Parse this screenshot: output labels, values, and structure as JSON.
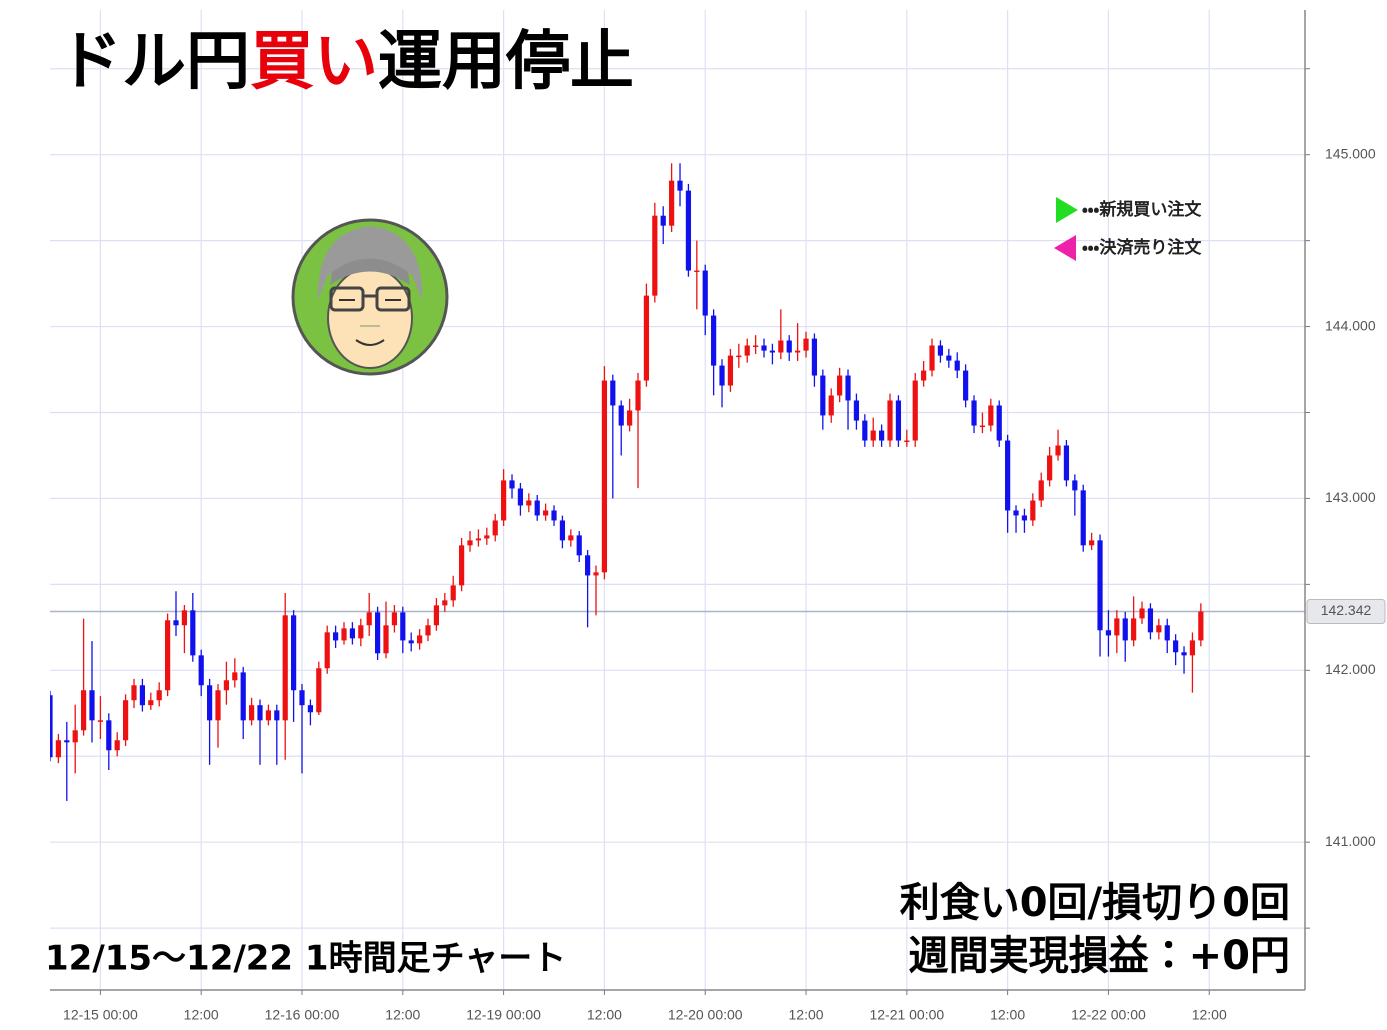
{
  "header": {
    "title_parts": [
      {
        "text": "ドル円",
        "color": "#000000"
      },
      {
        "text": "買い",
        "color": "#e8000b"
      },
      {
        "text": "運用停止",
        "color": "#000000"
      }
    ]
  },
  "chart_data": {
    "type": "candlestick",
    "xlim": [
      0,
      149.4
    ],
    "xticks": [
      {
        "value": 6,
        "label": "12-15 00:00"
      },
      {
        "value": 18,
        "label": "12:00"
      },
      {
        "value": 30,
        "label": "12-16 00:00"
      },
      {
        "value": 42,
        "label": "12:00"
      },
      {
        "value": 54,
        "label": "12-19 00:00"
      },
      {
        "value": 66,
        "label": "12:00"
      },
      {
        "value": 78,
        "label": "12-20 00:00"
      },
      {
        "value": 90,
        "label": "12:00"
      },
      {
        "value": 102,
        "label": "12-21 00:00"
      },
      {
        "value": 114,
        "label": "12:00"
      },
      {
        "value": 126,
        "label": "12-22 00:00"
      },
      {
        "value": 138,
        "label": "12:00"
      }
    ],
    "ylim": [
      140.14,
      145.9
    ],
    "yticks": [
      {
        "value": 141,
        "label": "141.000"
      },
      {
        "value": 142,
        "label": "142.000"
      },
      {
        "value": 143,
        "label": "143.000"
      },
      {
        "value": 144,
        "label": "144.000"
      },
      {
        "value": 145,
        "label": "145.000"
      }
    ],
    "yminorticks": [
      140.5,
      141.5,
      142.5,
      143.5,
      144.5,
      145.5
    ],
    "grid": true,
    "up_color": "#ee1111",
    "down_color": "#1111ee",
    "last_price": 142.342,
    "open": [
      141.855,
      141.494,
      141.593,
      141.581,
      141.651,
      141.884,
      141.709,
      141.709,
      141.535,
      141.593,
      141.826,
      141.913,
      141.797,
      141.826,
      141.884,
      142.291,
      142.262,
      142.349,
      142.087,
      141.913,
      141.709,
      141.884,
      141.942,
      141.988,
      141.709,
      141.797,
      141.709,
      141.767,
      141.709,
      142.32,
      141.884,
      141.797,
      141.756,
      142.012,
      142.221,
      142.174,
      142.244,
      142.186,
      142.262,
      142.337,
      142.099,
      142.262,
      142.337,
      142.174,
      142.157,
      142.203,
      142.262,
      142.378,
      142.407,
      142.494,
      142.727,
      142.756,
      142.767,
      142.785,
      142.872,
      143.105,
      143.058,
      142.959,
      142.988,
      142.901,
      142.93,
      142.872,
      142.756,
      142.785,
      142.669,
      142.552,
      142.57,
      143.686,
      143.541,
      143.424,
      143.512,
      143.686,
      144.18,
      144.645,
      144.587,
      144.849,
      144.791,
      144.326,
      144.326,
      144.064,
      143.773,
      143.657,
      143.831,
      143.831,
      143.89,
      143.89,
      143.86,
      143.849,
      143.919,
      143.849,
      143.86,
      143.93,
      143.715,
      143.483,
      143.599,
      143.715,
      143.57,
      143.453,
      143.337,
      143.395,
      143.337,
      143.57,
      143.337,
      143.337,
      143.686,
      143.744,
      143.89,
      143.831,
      143.802,
      143.744,
      143.57,
      143.424,
      143.424,
      143.541,
      143.337,
      142.93,
      142.901,
      142.872,
      142.988,
      143.105,
      143.25,
      143.308,
      143.105,
      143.047,
      142.727,
      142.756,
      142.233,
      142.203,
      142.302,
      142.174,
      142.302,
      142.36,
      142.221,
      142.262,
      142.174,
      142.105,
      142.087,
      142.174
    ],
    "high": [
      141.88,
      141.63,
      141.7,
      141.8,
      142.3,
      142.17,
      141.85,
      141.75,
      141.64,
      141.86,
      141.95,
      141.95,
      141.87,
      141.93,
      142.33,
      142.46,
      142.38,
      142.45,
      142.12,
      141.95,
      141.92,
      142.05,
      142.07,
      142.02,
      141.84,
      141.83,
      141.8,
      141.8,
      142.45,
      142.35,
      141.92,
      141.83,
      142.05,
      142.26,
      142.26,
      142.28,
      142.28,
      142.3,
      142.45,
      142.37,
      142.4,
      142.38,
      142.37,
      142.22,
      142.24,
      142.3,
      142.42,
      142.45,
      142.55,
      142.77,
      142.81,
      142.82,
      142.83,
      142.91,
      143.17,
      143.14,
      143.09,
      143.03,
      143.02,
      142.97,
      142.96,
      142.9,
      142.82,
      142.81,
      142.7,
      142.61,
      143.77,
      143.72,
      143.57,
      143.58,
      143.73,
      144.25,
      144.72,
      144.7,
      144.95,
      144.95,
      144.83,
      144.5,
      144.36,
      144.1,
      143.81,
      143.87,
      143.9,
      143.93,
      143.95,
      143.93,
      143.9,
      144.1,
      143.95,
      144.02,
      143.97,
      143.96,
      143.75,
      143.64,
      143.76,
      143.75,
      143.61,
      143.49,
      143.47,
      143.43,
      143.61,
      143.6,
      143.4,
      143.73,
      143.8,
      143.93,
      143.92,
      143.87,
      143.85,
      143.78,
      143.6,
      143.5,
      143.58,
      143.57,
      143.37,
      142.96,
      142.94,
      143.03,
      143.15,
      143.3,
      143.4,
      143.34,
      143.14,
      143.08,
      142.8,
      142.79,
      142.35,
      142.35,
      142.34,
      142.43,
      142.4,
      142.39,
      142.3,
      142.3,
      142.21,
      142.14,
      142.22,
      142.39
    ],
    "low": [
      141.47,
      141.46,
      141.24,
      141.4,
      141.62,
      141.58,
      141.6,
      141.42,
      141.5,
      141.56,
      141.78,
      141.76,
      141.77,
      141.79,
      141.85,
      142.2,
      142.1,
      142.05,
      141.85,
      141.45,
      141.55,
      141.8,
      141.9,
      141.6,
      141.68,
      141.45,
      141.68,
      141.45,
      141.48,
      141.7,
      141.4,
      141.68,
      141.74,
      141.98,
      142.13,
      142.15,
      142.15,
      142.14,
      142.2,
      142.06,
      142.07,
      142.22,
      142.1,
      142.11,
      142.12,
      142.17,
      142.23,
      142.34,
      142.37,
      142.46,
      142.69,
      142.72,
      142.73,
      142.75,
      142.84,
      143.0,
      142.9,
      142.92,
      142.87,
      142.87,
      142.84,
      142.71,
      142.72,
      142.63,
      142.25,
      142.32,
      142.53,
      143.0,
      143.25,
      143.39,
      143.06,
      143.65,
      144.14,
      144.48,
      144.55,
      144.7,
      144.29,
      144.1,
      143.95,
      143.6,
      143.53,
      143.62,
      143.76,
      143.79,
      143.84,
      143.82,
      143.78,
      143.81,
      143.8,
      143.8,
      143.82,
      143.65,
      143.4,
      143.44,
      143.56,
      143.4,
      143.4,
      143.3,
      143.3,
      143.3,
      143.3,
      143.3,
      143.3,
      143.3,
      143.65,
      143.71,
      143.79,
      143.76,
      143.7,
      143.53,
      143.38,
      143.38,
      143.39,
      143.3,
      142.8,
      142.8,
      142.8,
      142.84,
      142.95,
      143.07,
      143.22,
      143.07,
      142.9,
      142.69,
      142.7,
      142.08,
      142.08,
      142.1,
      142.05,
      142.14,
      142.27,
      142.18,
      142.18,
      142.1,
      142.03,
      141.98,
      141.87,
      142.14
    ],
    "close": [
      141.494,
      141.593,
      141.581,
      141.651,
      141.884,
      141.709,
      141.709,
      141.535,
      141.593,
      141.826,
      141.913,
      141.797,
      141.826,
      141.884,
      142.291,
      142.262,
      142.349,
      142.087,
      141.913,
      141.709,
      141.884,
      141.942,
      141.988,
      141.709,
      141.797,
      141.709,
      141.767,
      141.709,
      142.32,
      141.884,
      141.797,
      141.756,
      142.012,
      142.221,
      142.174,
      142.244,
      142.186,
      142.262,
      142.337,
      142.099,
      142.262,
      142.337,
      142.174,
      142.157,
      142.203,
      142.262,
      142.378,
      142.407,
      142.494,
      142.727,
      142.756,
      142.767,
      142.785,
      142.872,
      143.105,
      143.058,
      142.959,
      142.988,
      142.901,
      142.93,
      142.872,
      142.756,
      142.785,
      142.669,
      142.552,
      142.57,
      143.686,
      143.541,
      143.424,
      143.512,
      143.686,
      144.18,
      144.645,
      144.587,
      144.849,
      144.791,
      144.326,
      144.326,
      144.064,
      143.773,
      143.657,
      143.831,
      143.831,
      143.89,
      143.89,
      143.86,
      143.849,
      143.919,
      143.849,
      143.86,
      143.93,
      143.715,
      143.483,
      143.599,
      143.715,
      143.57,
      143.453,
      143.337,
      143.395,
      143.337,
      143.57,
      143.337,
      143.337,
      143.686,
      143.744,
      143.89,
      143.831,
      143.802,
      143.744,
      143.57,
      143.424,
      143.424,
      143.541,
      143.337,
      142.93,
      142.901,
      142.872,
      142.988,
      143.105,
      143.25,
      143.308,
      143.105,
      143.047,
      142.727,
      142.756,
      142.233,
      142.203,
      142.302,
      142.174,
      142.302,
      142.36,
      142.221,
      142.262,
      142.174,
      142.105,
      142.087,
      142.174,
      142.342
    ],
    "legend": [
      {
        "label": "・・・新規買い注文",
        "color": "#22dd22",
        "marker": "right"
      },
      {
        "label": "・・・決済売り注文",
        "color": "#ee22aa",
        "marker": "left"
      }
    ],
    "caption": "12/15～12/22  1時間足チャート",
    "summary": [
      "利食い0回/損切り0回",
      "週間実現損益：+0円"
    ]
  }
}
